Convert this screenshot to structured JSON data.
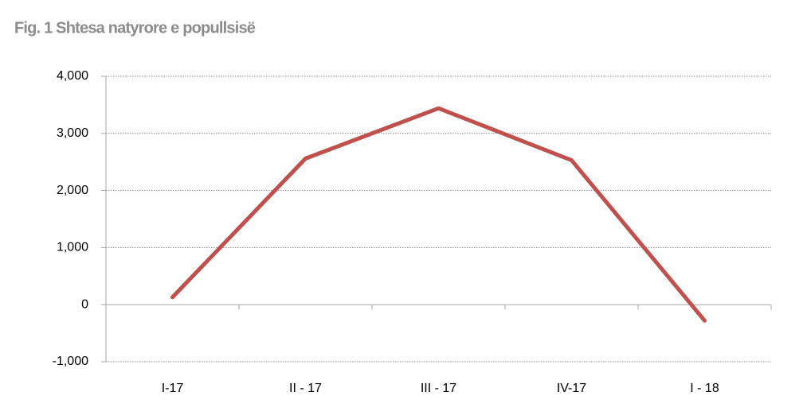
{
  "chart_data": {
    "type": "line",
    "title": "Fig. 1 Shtesa natyrore e popullsisë",
    "categories": [
      "I-17",
      "II - 17",
      "III - 17",
      "IV-17",
      "I - 18"
    ],
    "values": [
      130,
      2560,
      3440,
      2530,
      -280
    ],
    "color": "#c0504d",
    "ylim": [
      -1000,
      4000
    ],
    "yticks": [
      {
        "value": -1000,
        "label": "-1,000"
      },
      0,
      {
        "value": 1000,
        "label": "1,000"
      },
      {
        "value": 2000,
        "label": "2,000"
      },
      {
        "value": 3000,
        "label": "3,000"
      },
      {
        "value": 4000,
        "label": "4,000"
      }
    ],
    "grid": true
  }
}
